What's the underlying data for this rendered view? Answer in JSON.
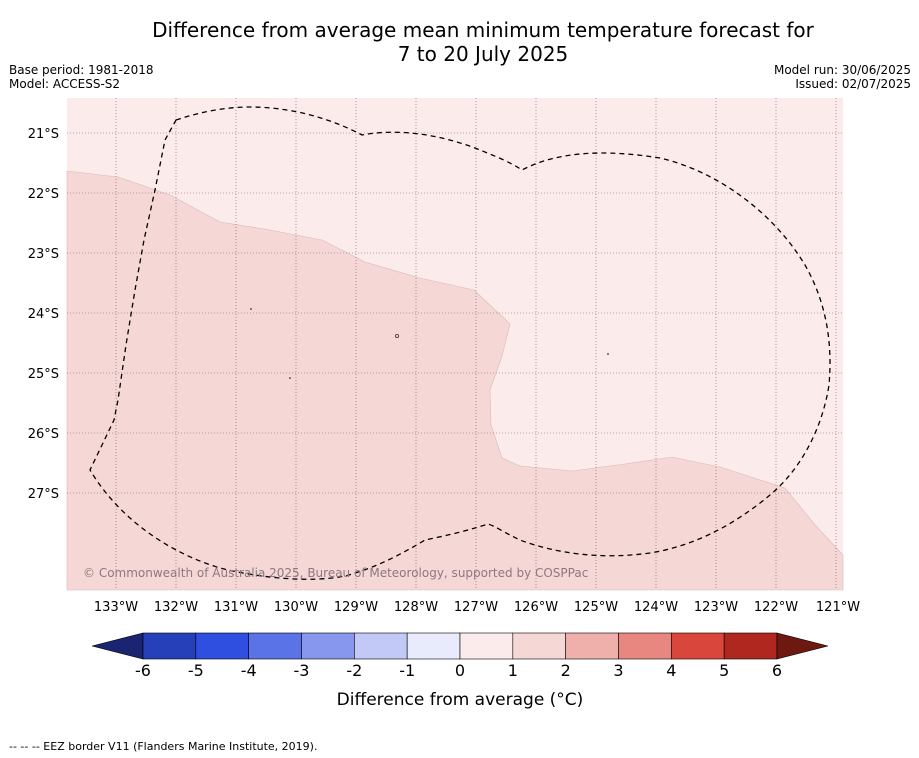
{
  "title_line1": "Difference from average mean minimum temperature forecast for",
  "title_line2": "7 to 20 July 2025",
  "base_period": "Base period: 1981-2018",
  "model": "Model: ACCESS-S2",
  "model_run": "Model run: 30/06/2025",
  "issued": "Issued: 02/07/2025",
  "copyright": "© Commonwealth of Australia 2025, Bureau of Meteorology, supported by COSPPac",
  "lat_labels": [
    "21°S",
    "22°S",
    "23°S",
    "24°S",
    "25°S",
    "26°S",
    "27°S"
  ],
  "lon_labels": [
    "133°W",
    "132°W",
    "131°W",
    "130°W",
    "129°W",
    "128°W",
    "127°W",
    "126°W",
    "125°W",
    "124°W",
    "123°W",
    "122°W",
    "121°W"
  ],
  "colorbar": {
    "title": "Difference from average (°C)",
    "ticks": [
      "-6",
      "-5",
      "-4",
      "-3",
      "-2",
      "-1",
      "0",
      "1",
      "2",
      "3",
      "4",
      "5",
      "6"
    ],
    "colors": [
      "#1f2f98",
      "#2540b8",
      "#2f4fe0",
      "#5a73e6",
      "#8797ee",
      "#c2c9f6",
      "#e8ebfb",
      "#fbeceb",
      "#f5d7d5",
      "#efafaa",
      "#e8877f",
      "#d8463c",
      "#b0271f",
      "#7a1a14"
    ],
    "under_color": "#1a2470",
    "over_color": "#6e1812"
  },
  "map_colors": {
    "zone_0_1": "#fbeceb",
    "zone_1_2": "#f5d7d5"
  },
  "footnote": "-- -- -- EEZ border V11 (Flanders Marine Institute, 2019)."
}
